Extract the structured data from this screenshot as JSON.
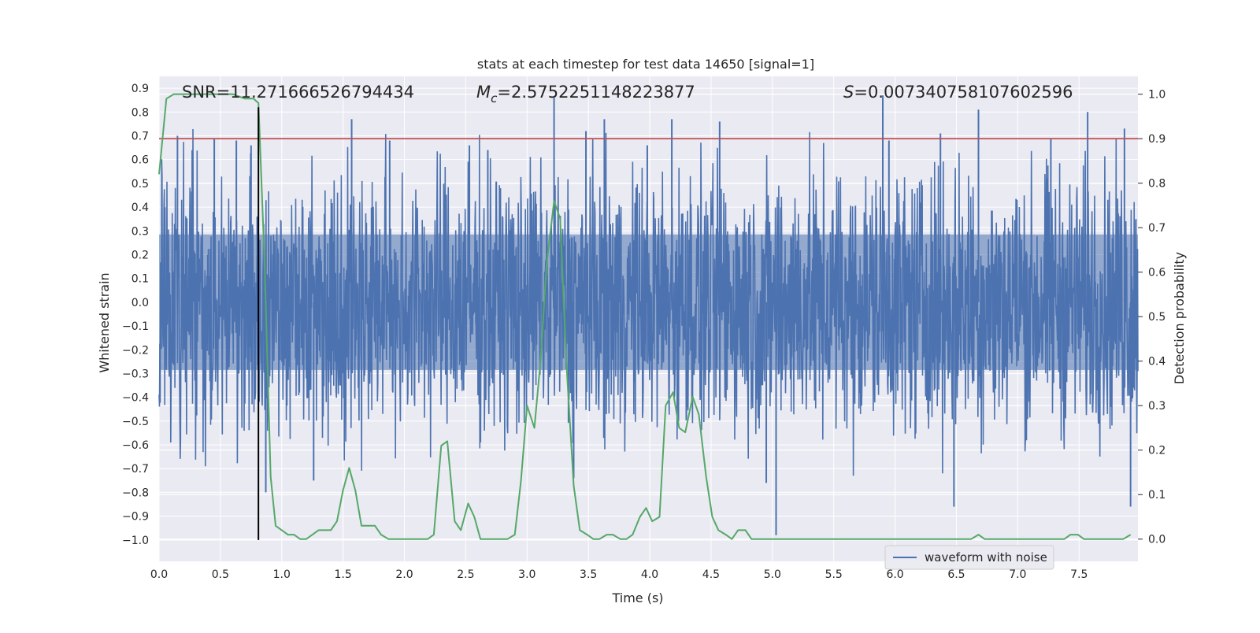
{
  "chart_data": {
    "type": "line",
    "title": "stats at each timestep for test data 14650 [signal=1]",
    "xlabel": "Time (s)",
    "ylabel_left": "Whitened strain",
    "ylabel_right": "Detection probability",
    "xlim": [
      0.0,
      7.98
    ],
    "ylim_left": [
      -1.09,
      0.95
    ],
    "ylim_right": [
      -0.05,
      1.04
    ],
    "xticks": [
      "0.0",
      "0.5",
      "1.0",
      "1.5",
      "2.0",
      "2.5",
      "3.0",
      "3.5",
      "4.0",
      "4.5",
      "5.0",
      "5.5",
      "6.0",
      "6.5",
      "7.0",
      "7.5"
    ],
    "yticks_left": [
      "0.9",
      "0.8",
      "0.7",
      "0.6",
      "0.5",
      "0.4",
      "0.3",
      "0.2",
      "0.1",
      "0.0",
      "−0.1",
      "−0.2",
      "−0.3",
      "−0.4",
      "−0.5",
      "−0.6",
      "−0.7",
      "−0.8",
      "−0.9",
      "−1.0"
    ],
    "yticks_right": [
      "1.0",
      "0.9",
      "0.8",
      "0.7",
      "0.6",
      "0.5",
      "0.4",
      "0.3",
      "0.2",
      "0.1",
      "0.0"
    ],
    "grid": true,
    "legend_position": "bottom-right",
    "annotations": {
      "snr": "SNR=11.271666526794434",
      "mc_prefix": "M",
      "mc_sub": "c",
      "mc_value": "=2.5752251148223877",
      "s_prefix": "S",
      "s_value": "=0.007340758107602596"
    },
    "threshold_line": {
      "y_right": 0.9,
      "color": "#c44e52"
    },
    "marker_line": {
      "x": 0.81,
      "y_from_left": -1.0,
      "y_to_left": 0.82,
      "color": "#000000"
    },
    "series": [
      {
        "name": "waveform with noise",
        "axis": "left",
        "color": "#4c72b0",
        "kind": "noise-waveform",
        "approx_band": 0.3,
        "spikes": [
          [
            0.15,
            0.7
          ],
          [
            0.27,
            0.64
          ],
          [
            0.45,
            0.69
          ],
          [
            0.63,
            0.68
          ],
          [
            0.75,
            0.66
          ],
          [
            0.8,
            0.36
          ],
          [
            0.87,
            -0.8
          ],
          [
            1.57,
            0.77
          ],
          [
            1.26,
            -0.75
          ],
          [
            1.88,
            0.68
          ],
          [
            2.53,
            0.66
          ],
          [
            2.68,
            0.64
          ],
          [
            3.22,
            0.86
          ],
          [
            3.38,
            -0.74
          ],
          [
            3.48,
            0.72
          ],
          [
            3.63,
            0.77
          ],
          [
            3.98,
            0.66
          ],
          [
            4.18,
            0.77
          ],
          [
            4.57,
            0.76
          ],
          [
            4.95,
            -0.76
          ],
          [
            5.03,
            -0.98
          ],
          [
            5.9,
            0.87
          ],
          [
            5.95,
            0.68
          ],
          [
            6.37,
            0.71
          ],
          [
            6.48,
            -0.86
          ],
          [
            6.68,
            0.81
          ],
          [
            7.27,
            0.69
          ],
          [
            7.57,
            0.8
          ],
          [
            7.87,
            0.73
          ],
          [
            7.92,
            -0.86
          ]
        ]
      },
      {
        "name": "",
        "axis": "right",
        "color": "#55a868",
        "x": [
          0.0,
          0.06,
          0.12,
          0.2,
          0.3,
          0.4,
          0.5,
          0.6,
          0.7,
          0.77,
          0.81,
          0.86,
          0.91,
          0.95,
          1.0,
          1.05,
          1.1,
          1.15,
          1.2,
          1.25,
          1.3,
          1.35,
          1.4,
          1.45,
          1.5,
          1.55,
          1.6,
          1.65,
          1.7,
          1.76,
          1.81,
          1.87,
          1.92,
          1.98,
          2.03,
          2.08,
          2.14,
          2.19,
          2.24,
          2.3,
          2.35,
          2.41,
          2.46,
          2.52,
          2.57,
          2.62,
          2.68,
          2.73,
          2.79,
          2.84,
          2.9,
          2.95,
          3.0,
          3.06,
          3.11,
          3.16,
          3.22,
          3.27,
          3.32,
          3.38,
          3.43,
          3.49,
          3.54,
          3.59,
          3.65,
          3.7,
          3.76,
          3.81,
          3.86,
          3.92,
          3.97,
          4.02,
          4.08,
          4.13,
          4.19,
          4.24,
          4.29,
          4.35,
          4.4,
          4.46,
          4.51,
          4.56,
          4.62,
          4.67,
          4.72,
          4.78,
          4.83,
          4.89,
          4.94,
          5.0,
          5.05,
          5.1,
          5.15,
          5.2,
          5.27,
          5.32,
          5.38,
          5.43,
          5.49,
          5.54,
          5.6,
          5.65,
          5.7,
          5.76,
          5.81,
          5.87,
          5.92,
          5.97,
          6.03,
          6.08,
          6.14,
          6.19,
          6.24,
          6.3,
          6.35,
          6.41,
          6.46,
          6.51,
          6.57,
          6.62,
          6.68,
          6.73,
          6.78,
          6.84,
          6.89,
          6.95,
          7.0,
          7.05,
          7.11,
          7.16,
          7.22,
          7.27,
          7.32,
          7.38,
          7.43,
          7.49,
          7.54,
          7.59,
          7.65,
          7.7,
          7.76,
          7.81,
          7.86,
          7.92
        ],
        "values": [
          0.82,
          0.99,
          1.0,
          1.0,
          1.0,
          1.0,
          1.0,
          1.0,
          0.99,
          0.99,
          0.98,
          0.62,
          0.14,
          0.03,
          0.02,
          0.01,
          0.01,
          0.0,
          0.0,
          0.01,
          0.02,
          0.02,
          0.02,
          0.04,
          0.11,
          0.16,
          0.11,
          0.03,
          0.03,
          0.03,
          0.01,
          0.0,
          0.0,
          0.0,
          0.0,
          0.0,
          0.0,
          0.0,
          0.01,
          0.21,
          0.22,
          0.04,
          0.02,
          0.08,
          0.05,
          0.0,
          0.0,
          0.0,
          0.0,
          0.0,
          0.01,
          0.13,
          0.3,
          0.25,
          0.4,
          0.62,
          0.76,
          0.72,
          0.4,
          0.12,
          0.02,
          0.01,
          0.0,
          0.0,
          0.01,
          0.01,
          0.0,
          0.0,
          0.01,
          0.05,
          0.07,
          0.04,
          0.05,
          0.3,
          0.33,
          0.25,
          0.24,
          0.32,
          0.28,
          0.14,
          0.05,
          0.02,
          0.01,
          0.0,
          0.02,
          0.02,
          0.0,
          0.0,
          0.0,
          0.0,
          0.0,
          0.0,
          0.0,
          0.0,
          0.0,
          0.0,
          0.0,
          0.0,
          0.0,
          0.0,
          0.0,
          0.0,
          0.0,
          0.0,
          0.0,
          0.0,
          0.0,
          0.0,
          0.0,
          0.0,
          0.0,
          0.0,
          0.0,
          0.0,
          0.0,
          0.0,
          0.0,
          0.0,
          0.0,
          0.0,
          0.01,
          0.0,
          0.0,
          0.0,
          0.0,
          0.0,
          0.0,
          0.0,
          0.0,
          0.0,
          0.0,
          0.0,
          0.0,
          0.0,
          0.01,
          0.01,
          0.0,
          0.0,
          0.0,
          0.0,
          0.0,
          0.0,
          0.0,
          0.01
        ]
      }
    ]
  }
}
